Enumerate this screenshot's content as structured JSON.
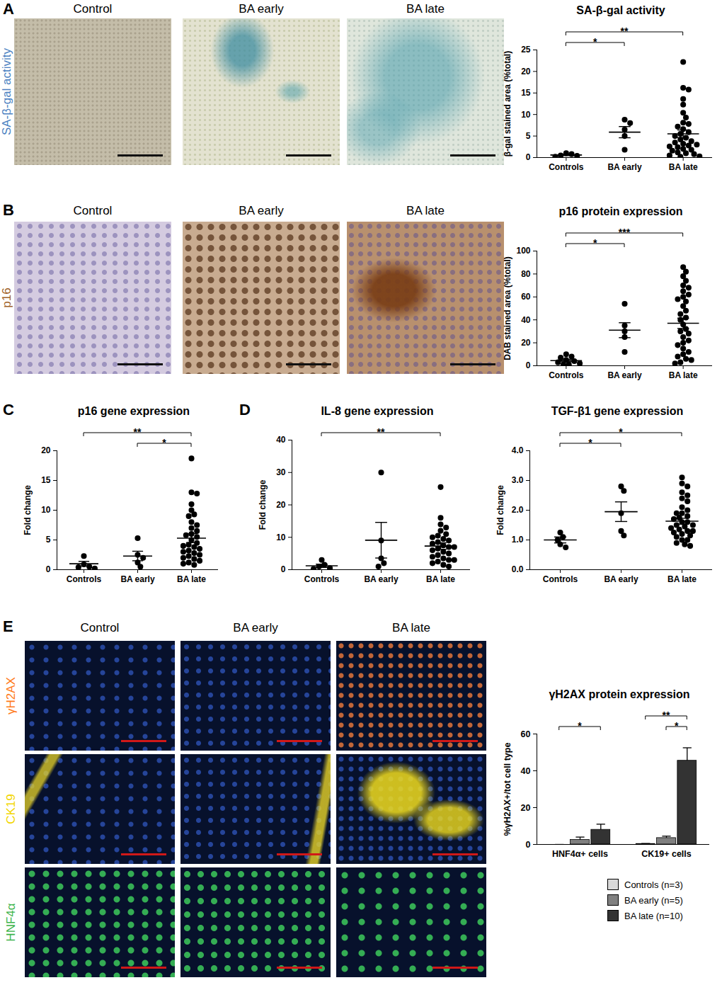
{
  "figure": {
    "panels": [
      {
        "letter": "A",
        "image_titles": [
          "Control",
          "BA early",
          "BA late"
        ],
        "stains": [
          {
            "text": "SA-β-gal activity",
            "color": "#4a7fc1"
          }
        ]
      },
      {
        "letter": "B",
        "image_titles": [
          "Control",
          "BA early",
          "BA late"
        ],
        "stains": [
          {
            "text": "p16",
            "color": "#a0622a"
          }
        ]
      },
      {
        "letter": "C"
      },
      {
        "letter": "D"
      },
      {
        "letter": "E",
        "image_titles": [
          "Control",
          "BA early",
          "BA late"
        ],
        "stains": [
          {
            "text": "γH2AX",
            "color": "#ff7a1a"
          },
          {
            "text": "CK19",
            "color": "#f2d600"
          },
          {
            "text": "HNF4α",
            "color": "#3cb44a"
          }
        ]
      }
    ]
  },
  "chart_data": [
    {
      "type": "scatter",
      "title": "SA-β-gal activity",
      "y_label": "β-gal stained area (%total)",
      "categories": [
        "Controls",
        "BA early",
        "BA late"
      ],
      "values": [
        [
          1.0,
          0.8,
          0.5,
          0.4,
          0.2
        ],
        [
          8.8,
          8.0,
          6.5,
          5.0,
          1.8
        ],
        [
          22.2,
          16.2,
          15.8,
          13.6,
          12.3,
          10.4,
          9.3,
          8.1,
          7.8,
          7.2,
          6.6,
          5.9,
          5.5,
          5.0,
          4.6,
          4.2,
          3.8,
          3.5,
          3.2,
          3.0,
          2.8,
          2.6,
          2.4,
          2.0,
          1.8,
          1.6,
          1.2,
          1.0,
          0.8,
          0.5,
          0.3,
          0.2
        ]
      ],
      "means": [
        0.6,
        5.9,
        5.5
      ],
      "errors": [
        0.15,
        1.3,
        0.9
      ],
      "color": "#000000",
      "marker": "circle",
      "ylim": [
        0,
        25
      ],
      "yticks": [
        0,
        5,
        10,
        15,
        20,
        25
      ],
      "significance": [
        {
          "between": [
            "Controls",
            "BA early"
          ],
          "text": "*"
        },
        {
          "between": [
            "Controls",
            "BA late"
          ],
          "text": "**"
        }
      ]
    },
    {
      "type": "scatter",
      "title": "p16 protein expression",
      "y_label": "DAB stained area (%total)",
      "categories": [
        "Controls",
        "BA early",
        "BA late"
      ],
      "values": [
        [
          10,
          8,
          7,
          5,
          4,
          3,
          2,
          1,
          1
        ],
        [
          54,
          35,
          30,
          25,
          12
        ],
        [
          86,
          82,
          78,
          74,
          70,
          68,
          65,
          62,
          60,
          58,
          56,
          52,
          48,
          45,
          42,
          40,
          36,
          32,
          30,
          28,
          25,
          22,
          20,
          18,
          15,
          12,
          10,
          8,
          6,
          5,
          3,
          2
        ]
      ],
      "means": [
        4.5,
        31,
        37
      ],
      "errors": [
        1,
        6.5,
        4.5
      ],
      "color": "#000000",
      "marker": "circle",
      "ylim": [
        0,
        100
      ],
      "yticks": [
        0,
        20,
        40,
        60,
        80,
        100
      ],
      "significance": [
        {
          "between": [
            "Controls",
            "BA early"
          ],
          "text": "*"
        },
        {
          "between": [
            "Controls",
            "BA late"
          ],
          "text": "***"
        }
      ]
    },
    {
      "type": "scatter",
      "title": "p16 gene expression",
      "y_label": "Fold change",
      "categories": [
        "Controls",
        "BA early",
        "BA late"
      ],
      "values": [
        [
          2.3,
          0.9,
          0.5,
          0.4,
          0.2
        ],
        [
          5.3,
          2.5,
          2.0,
          1.2,
          0.5
        ],
        [
          18.7,
          13.0,
          12.8,
          11.0,
          10.0,
          9.3,
          9.0,
          8.0,
          7.5,
          7.0,
          6.5,
          6.0,
          5.8,
          5.5,
          5.0,
          4.5,
          4.2,
          4.0,
          3.8,
          3.5,
          3.2,
          3.0,
          2.8,
          2.5,
          2.3,
          2.0,
          1.8,
          1.5,
          1.2,
          1.0,
          0.8
        ]
      ],
      "means": [
        1.0,
        2.3,
        5.3
      ],
      "errors": [
        0.4,
        0.8,
        0.75
      ],
      "color": "#000000",
      "marker": "circle",
      "ylim": [
        0,
        20
      ],
      "yticks": [
        0,
        5,
        10,
        15,
        20
      ],
      "significance": [
        {
          "between": [
            "BA early",
            "BA late"
          ],
          "text": "*"
        },
        {
          "between": [
            "Controls",
            "BA late"
          ],
          "text": "**"
        }
      ]
    },
    {
      "type": "scatter",
      "title": "IL-8 gene expression",
      "y_label": "Fold change",
      "categories": [
        "Controls",
        "BA early",
        "BA late"
      ],
      "values": [
        [
          3.0,
          1.5,
          1.0,
          0.5,
          0.2
        ],
        [
          30,
          9,
          3.5,
          2,
          1
        ],
        [
          25.5,
          16,
          14,
          13,
          12,
          11,
          10.5,
          10,
          9.5,
          9,
          8.5,
          8,
          7.5,
          7,
          7,
          6.5,
          6,
          5.5,
          5,
          4.5,
          4,
          3.5,
          3,
          3,
          2.5,
          2,
          1.5,
          1
        ]
      ],
      "means": [
        1.2,
        9.1,
        7.3
      ],
      "errors": [
        0.5,
        5.5,
        1.0
      ],
      "color": "#000000",
      "marker": "circle",
      "ylim": [
        0,
        40
      ],
      "yticks": [
        0,
        10,
        20,
        30,
        40
      ],
      "significance": [
        {
          "between": [
            "Controls",
            "BA late"
          ],
          "text": "**"
        }
      ]
    },
    {
      "type": "scatter",
      "title": "TGF-β1 gene expression",
      "y_label": "Fold change",
      "categories": [
        "Controls",
        "BA early",
        "BA late"
      ],
      "values": [
        [
          1.25,
          1.1,
          1.0,
          0.85,
          0.75
        ],
        [
          2.8,
          2.65,
          1.9,
          1.3,
          1.15
        ],
        [
          3.1,
          2.9,
          2.8,
          2.6,
          2.5,
          2.4,
          2.3,
          2.1,
          2.0,
          1.9,
          1.9,
          1.8,
          1.75,
          1.7,
          1.6,
          1.6,
          1.5,
          1.5,
          1.45,
          1.4,
          1.35,
          1.3,
          1.3,
          1.25,
          1.2,
          1.15,
          1.1,
          1.0,
          1.0,
          0.9,
          0.85,
          0.8
        ]
      ],
      "means": [
        1.0,
        1.95,
        1.63
      ],
      "errors": [
        0.1,
        0.33,
        0.1
      ],
      "color": "#000000",
      "marker": "circle",
      "ylim": [
        0,
        4
      ],
      "yticks": [
        0,
        1,
        2,
        3,
        4
      ],
      "significance": [
        {
          "between": [
            "Controls",
            "BA early"
          ],
          "text": "*"
        },
        {
          "between": [
            "Controls",
            "BA late"
          ],
          "text": "*"
        }
      ]
    },
    {
      "type": "bar",
      "title": "γH2AX protein expression",
      "y_label": "%γH2AX+/tot cell type",
      "categories": [
        "HNF4α+ cells",
        "CK19+ cells"
      ],
      "series": [
        {
          "name": "Controls (n=3)",
          "color": "#d9d9d9",
          "values": [
            0,
            0.3
          ],
          "errors": [
            0,
            0.2
          ]
        },
        {
          "name": "BA early (n=5)",
          "color": "#808080",
          "values": [
            2.5,
            3.5
          ],
          "errors": [
            1.5,
            1.0
          ]
        },
        {
          "name": "BA late (n=10)",
          "color": "#333333",
          "values": [
            8,
            45.5
          ],
          "errors": [
            3,
            7
          ]
        }
      ],
      "ylim": [
        0,
        60
      ],
      "yticks": [
        0,
        20,
        40,
        60
      ],
      "legend": "bottom",
      "significance": [
        {
          "category": "HNF4α+ cells",
          "between": [
            "Controls (n=3)",
            "BA late (n=10)"
          ],
          "text": "*"
        },
        {
          "category": "CK19+ cells",
          "between": [
            "BA early (n=5)",
            "BA late (n=10)"
          ],
          "text": "*"
        },
        {
          "category": "CK19+ cells",
          "between": [
            "Controls (n=3)",
            "BA late (n=10)"
          ],
          "text": "**"
        }
      ]
    }
  ]
}
